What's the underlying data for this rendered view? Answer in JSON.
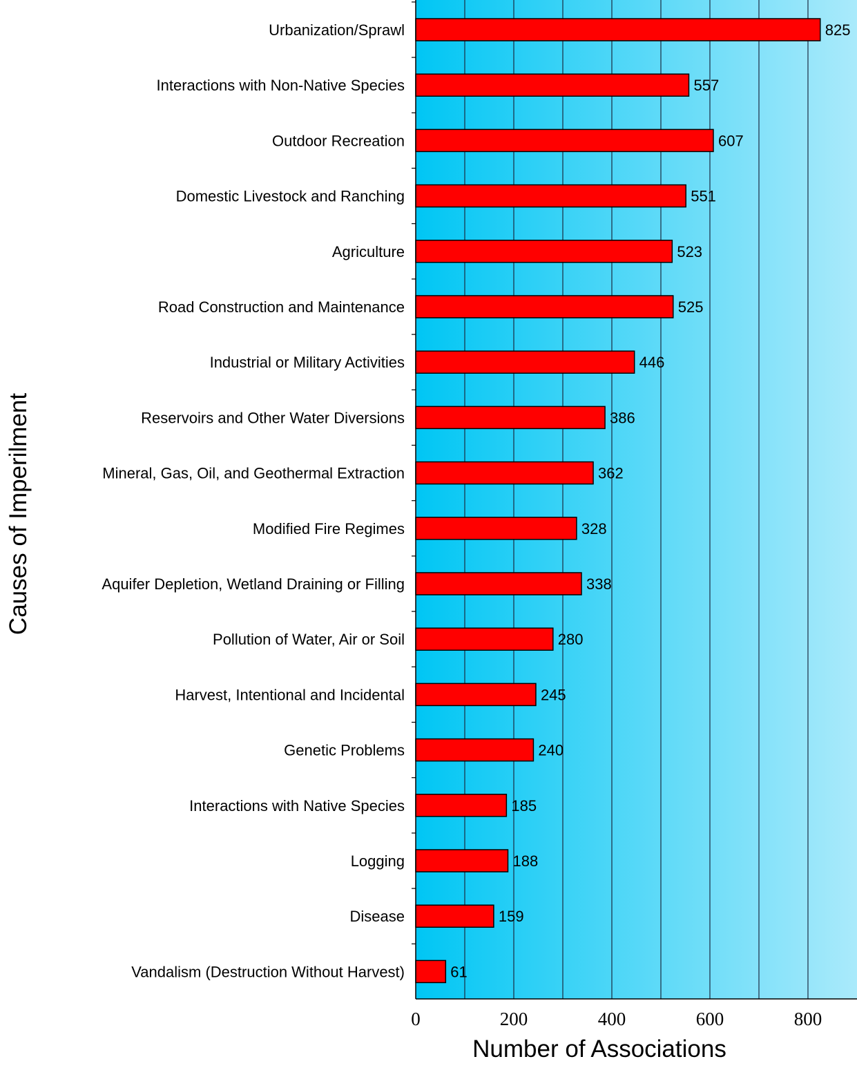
{
  "chart_data": {
    "type": "bar",
    "orientation": "horizontal",
    "categories": [
      "Urbanization/Sprawl",
      "Interactions with Non-Native Species",
      "Outdoor Recreation",
      "Domestic Livestock and Ranching",
      "Agriculture",
      "Road Construction and Maintenance",
      "Industrial or Military Activities",
      "Reservoirs and Other Water Diversions",
      "Mineral, Gas, Oil, and Geothermal Extraction",
      "Modified Fire Regimes",
      "Aquifer Depletion, Wetland Draining or Filling",
      "Pollution of Water, Air or Soil",
      "Harvest, Intentional and Incidental",
      "Genetic Problems",
      "Interactions with Native Species",
      "Logging",
      "Disease",
      "Vandalism (Destruction Without Harvest)"
    ],
    "values": [
      825,
      557,
      607,
      551,
      523,
      525,
      446,
      386,
      362,
      328,
      338,
      280,
      245,
      240,
      185,
      188,
      159,
      61
    ],
    "data_labels": [
      "825",
      "557",
      "607",
      "551",
      "523",
      "525",
      "446",
      "386",
      "362",
      "328",
      "338",
      "280",
      "245",
      "240",
      "185",
      "188",
      "159",
      "61"
    ],
    "xlabel": "Number of Associations",
    "ylabel": "Causes of Imperilment",
    "xlim": [
      0,
      900
    ],
    "x_ticks": [
      "0",
      "200",
      "400",
      "600",
      "800"
    ],
    "x_tick_values": [
      0,
      200,
      400,
      600,
      800
    ],
    "grid_values": [
      100,
      200,
      300,
      400,
      500,
      600,
      700,
      800
    ],
    "grid": true,
    "legend": "none",
    "colors": {
      "bar_fill": "#ff0000",
      "bar_stroke": "#000000",
      "background_left": "#00c6f4",
      "background_right": "#aaeafb",
      "grid_line": "#1a2a40"
    }
  }
}
